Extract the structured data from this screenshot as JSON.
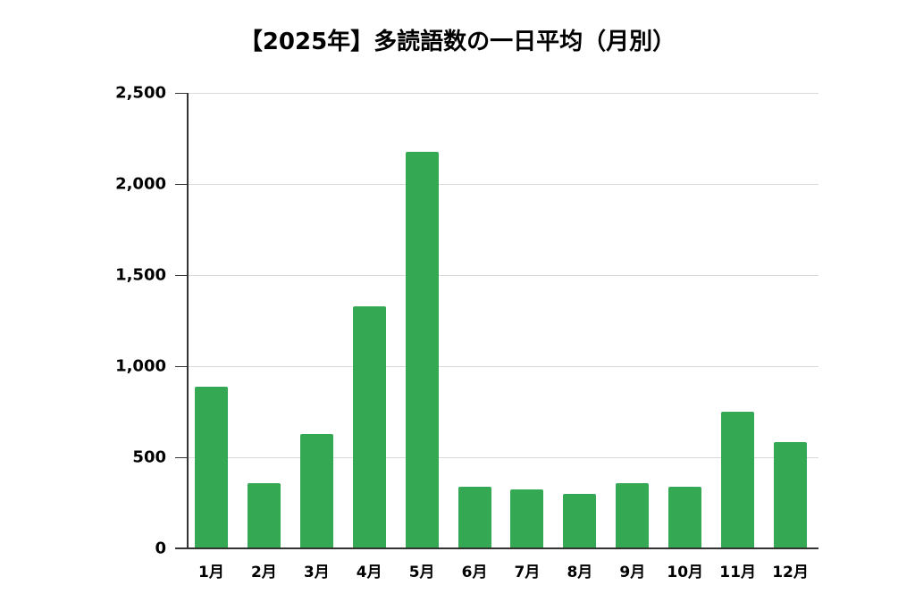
{
  "chart_data": {
    "type": "bar",
    "title": "【2025年】多読語数の一日平均（月別）",
    "xlabel": "",
    "ylabel": "",
    "categories": [
      "1月",
      "2月",
      "3月",
      "4月",
      "5月",
      "6月",
      "7月",
      "8月",
      "9月",
      "10月",
      "11月",
      "12月"
    ],
    "values": [
      887,
      358,
      627,
      1328,
      2176,
      338,
      324,
      299,
      358,
      338,
      750,
      583
    ],
    "ylim": [
      0,
      2500
    ],
    "yticks": [
      "0",
      "500",
      "1,000",
      "1,500",
      "2,000",
      "2,500"
    ],
    "grid": true,
    "legend": null,
    "bar_color": "#34a853"
  }
}
